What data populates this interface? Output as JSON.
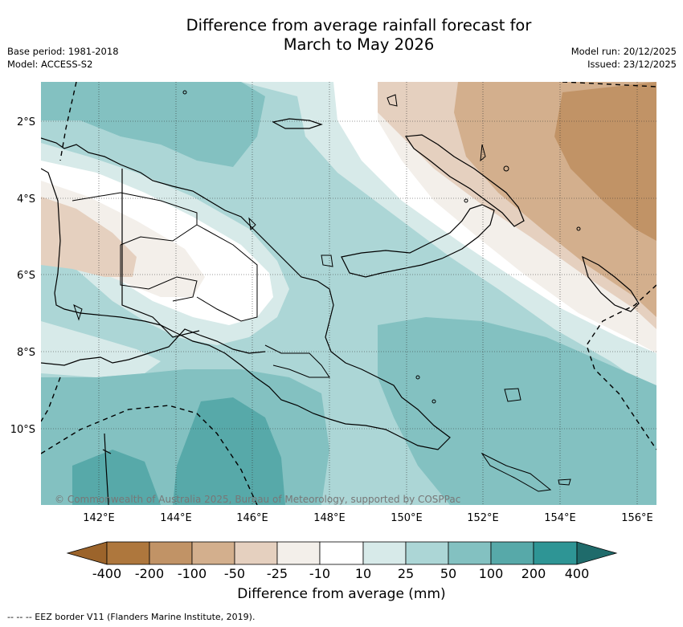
{
  "title": {
    "line1": "Difference from average rainfall forecast for",
    "line2": "March to May 2026"
  },
  "meta": {
    "base_period": "Base period: 1981-2018",
    "model": "Model: ACCESS-S2",
    "model_run": "Model run: 20/12/2025",
    "issued": "Issued: 23/12/2025"
  },
  "axes": {
    "lon_labels": [
      "142°E",
      "144°E",
      "146°E",
      "148°E",
      "150°E",
      "152°E",
      "154°E",
      "156°E"
    ],
    "lat_labels": [
      "2°S",
      "4°S",
      "6°S",
      "8°S",
      "10°S"
    ]
  },
  "copyright": "© Commonwealth of Australia 2025, Bureau of Meteorology, supported by COSPPac",
  "colorbar": {
    "title": "Difference from average (mm)",
    "tick_labels": [
      "-400",
      "-200",
      "-100",
      "-50",
      "-25",
      "-10",
      "10",
      "25",
      "50",
      "100",
      "200",
      "400"
    ],
    "colors": {
      "lt_-400": "#9c642b",
      "-400_-200": "#ae773d",
      "-200_-100": "#c19366",
      "-100_-50": "#d3af8d",
      "-50_-25": "#e5d0bf",
      "-25_-10": "#f3efea",
      "-10_10": "#ffffff",
      "10_25": "#d7eae9",
      "25_50": "#acd6d6",
      "50_100": "#83c1c1",
      "100_200": "#57a9a9",
      "200_400": "#2e9595",
      "gt_400": "#1f6b6b"
    }
  },
  "footnote": "-- -- -- EEZ border V11 (Flanders Marine Institute, 2019)."
}
